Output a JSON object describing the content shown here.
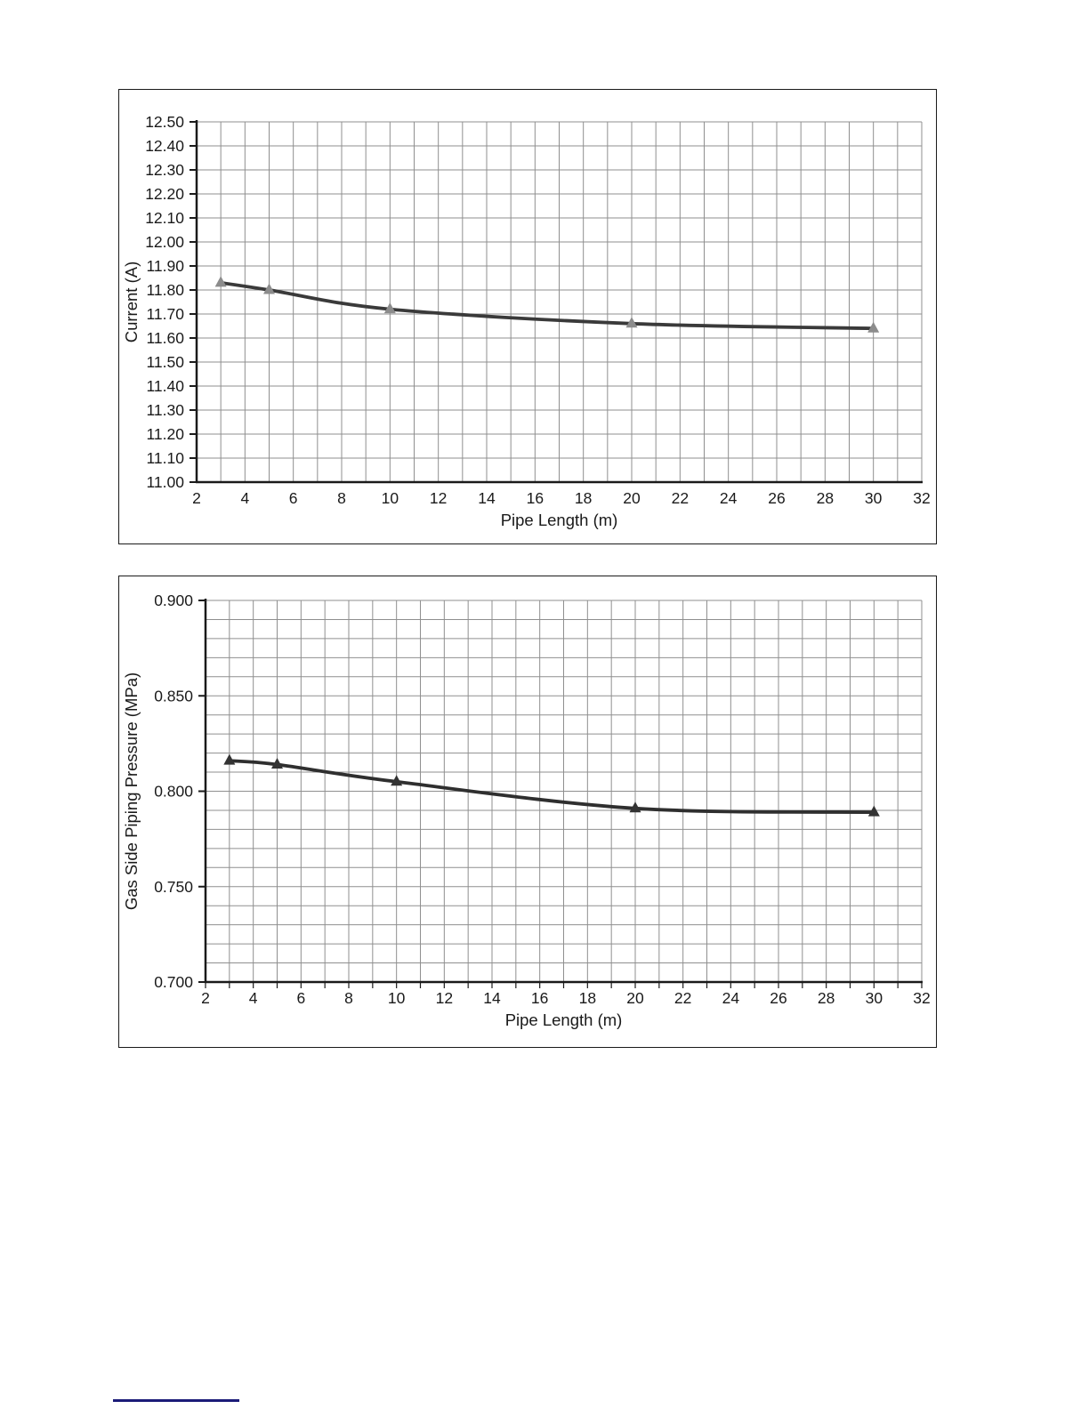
{
  "page": {
    "background_color": "#ffffff",
    "footnote_rule_color": "#1b1b78"
  },
  "chart_data": [
    {
      "type": "line",
      "title": "",
      "xlabel": "Pipe Length (m)",
      "ylabel": "Current (A)",
      "x": [
        3,
        5,
        10,
        20,
        30
      ],
      "y": [
        11.83,
        11.8,
        11.72,
        11.66,
        11.64
      ],
      "xlim": [
        2,
        32
      ],
      "ylim": [
        11.0,
        12.5
      ],
      "x_grid_step": 1,
      "x_label_step": 2,
      "y_grid_step": 0.1,
      "y_label_step": 0.1,
      "y_tick_decimals": 2,
      "x_tick_labels": [
        "2",
        "4",
        "6",
        "8",
        "10",
        "12",
        "14",
        "16",
        "18",
        "20",
        "22",
        "24",
        "26",
        "28",
        "30",
        "32"
      ],
      "y_tick_labels": [
        "11.00",
        "11.10",
        "11.20",
        "11.30",
        "11.40",
        "11.50",
        "11.60",
        "11.70",
        "11.80",
        "11.90",
        "12.00",
        "12.10",
        "12.20",
        "12.30",
        "12.40",
        "12.50"
      ],
      "grid": true,
      "legend": "none",
      "line_color": "#3a3a3a",
      "marker": "triangle-up",
      "marker_color": "#8c8c8c",
      "grid_color": "#8f8f8f",
      "axis_color": "#1a1a1a",
      "x_axis_ticks": false
    },
    {
      "type": "line",
      "title": "",
      "xlabel": "Pipe Length (m)",
      "ylabel": "Gas Side Piping Pressure (MPa)",
      "x": [
        3,
        5,
        10,
        20,
        30
      ],
      "y": [
        0.816,
        0.814,
        0.805,
        0.791,
        0.789
      ],
      "xlim": [
        2,
        32
      ],
      "ylim": [
        0.7,
        0.9
      ],
      "x_grid_step": 1,
      "x_label_step": 2,
      "y_grid_step": 0.01,
      "y_label_step": 0.05,
      "y_tick_decimals": 3,
      "x_tick_labels": [
        "2",
        "4",
        "6",
        "8",
        "10",
        "12",
        "14",
        "16",
        "18",
        "20",
        "22",
        "24",
        "26",
        "28",
        "30",
        "32"
      ],
      "y_tick_labels": [
        "0.700",
        "0.750",
        "0.800",
        "0.850",
        "0.900"
      ],
      "grid": true,
      "legend": "none",
      "line_color": "#2f2f2f",
      "marker": "triangle-up",
      "marker_color": "#333333",
      "grid_color": "#8f8f8f",
      "axis_color": "#1a1a1a",
      "x_axis_ticks": true
    }
  ]
}
